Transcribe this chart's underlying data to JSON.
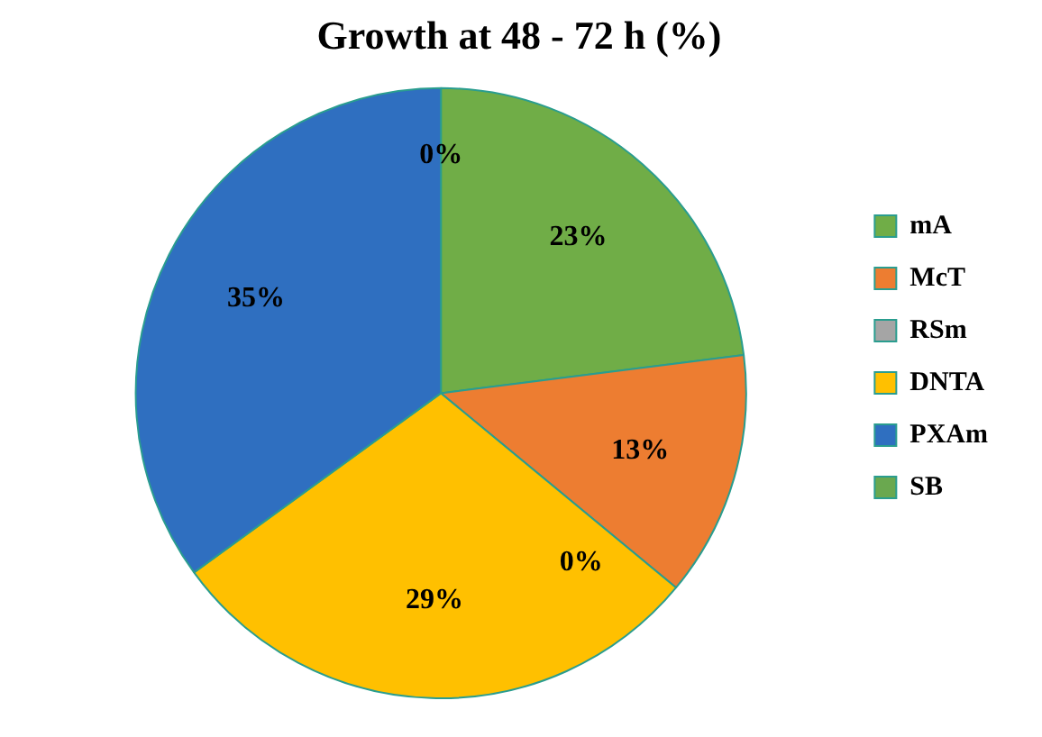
{
  "chart_data": {
    "type": "pie",
    "title": "Growth at 48 - 72 h (%)",
    "categories": [
      "mA",
      "McT",
      "RSm",
      "DNTA",
      "PXAm",
      "SB"
    ],
    "values": [
      23,
      13,
      0,
      29,
      35,
      0
    ],
    "value_labels": [
      "23%",
      "13%",
      "0%",
      "29%",
      "35%",
      "0%"
    ],
    "colors": [
      "#70ad47",
      "#ed7d31",
      "#a5a5a5",
      "#ffc000",
      "#2f6fc0",
      "#6aa84f"
    ],
    "legend": "right"
  }
}
